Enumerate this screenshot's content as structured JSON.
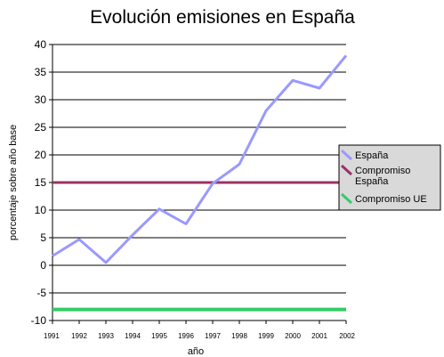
{
  "chart_data": {
    "type": "line",
    "title": "Evolución emisiones en España",
    "xlabel": "año",
    "ylabel": "porcentaje sobre año base",
    "ylim": [
      -10,
      40
    ],
    "yticks": [
      "40",
      "35",
      "30",
      "25",
      "20",
      "15",
      "10",
      "5",
      "0",
      "-5",
      "-10"
    ],
    "x": [
      "1991",
      "1992",
      "1993",
      "1994",
      "1995",
      "1996",
      "1997",
      "1998",
      "1999",
      "2000",
      "2001",
      "2002"
    ],
    "grid": true,
    "legend_position": "right",
    "series": [
      {
        "name": "España",
        "color": "#9999ff",
        "values": [
          1.7,
          4.7,
          0.5,
          5.5,
          10.2,
          7.5,
          14.8,
          18.3,
          28.0,
          33.5,
          32.1,
          38.0
        ]
      },
      {
        "name": "Compromiso España",
        "color": "#993366",
        "values": [
          15,
          15,
          15,
          15,
          15,
          15,
          15,
          15,
          15,
          15,
          15,
          15
        ]
      },
      {
        "name": "Compromiso UE",
        "color": "#33cc66",
        "values": [
          -8,
          -8,
          -8,
          -8,
          -8,
          -8,
          -8,
          -8,
          -8,
          -8,
          -8,
          -8
        ]
      }
    ]
  }
}
